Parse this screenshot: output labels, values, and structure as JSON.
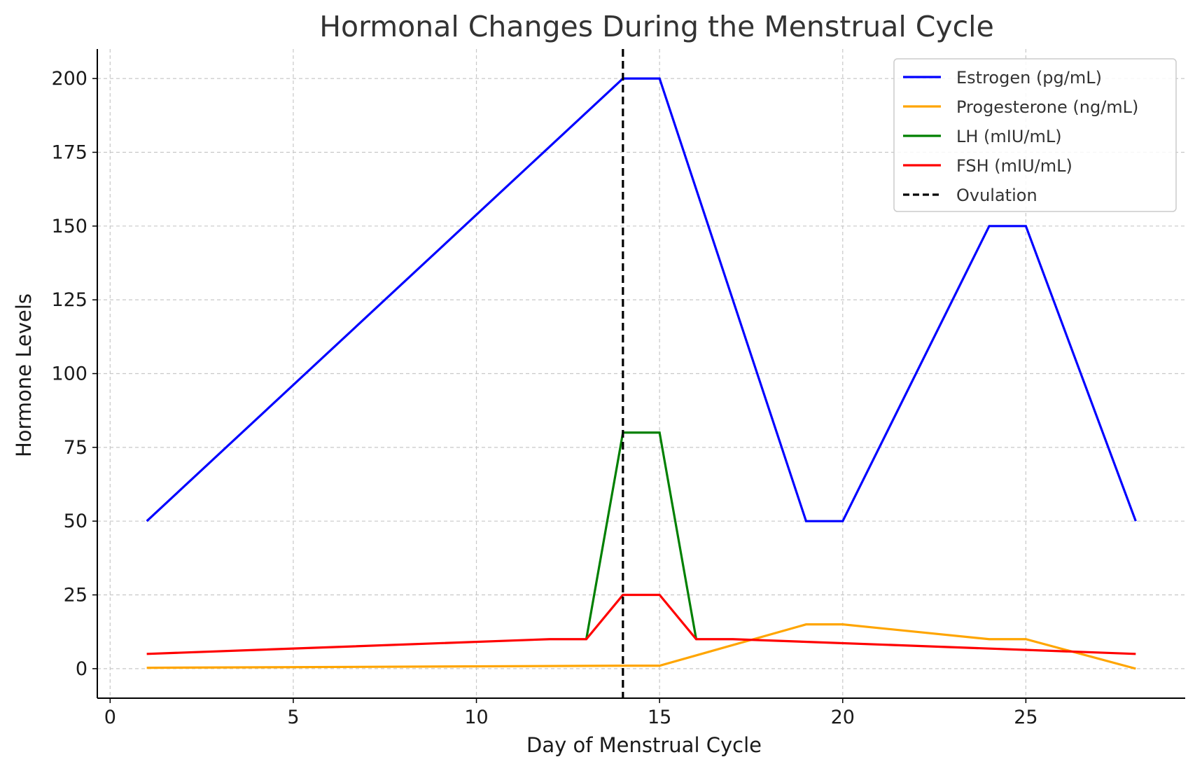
{
  "chart_data": {
    "type": "line",
    "title": "Hormonal Changes During the Menstrual Cycle",
    "xlabel": "Day of Menstrual Cycle",
    "ylabel": "Hormone Levels",
    "xlim": [
      -0.35,
      29.35
    ],
    "ylim": [
      -10,
      210
    ],
    "xticks": [
      0,
      5,
      10,
      15,
      20,
      25
    ],
    "yticks": [
      0,
      25,
      50,
      75,
      100,
      125,
      150,
      175,
      200
    ],
    "grid": true,
    "legend_position": "top-right",
    "series": [
      {
        "name": "Estrogen (pg/mL)",
        "color": "#0000ff",
        "points": [
          [
            1,
            50
          ],
          [
            14,
            200
          ],
          [
            15,
            200
          ],
          [
            19,
            50
          ],
          [
            20,
            50
          ],
          [
            24,
            150
          ],
          [
            25,
            150
          ],
          [
            28,
            50
          ]
        ]
      },
      {
        "name": "Progesterone (ng/mL)",
        "color": "#ffa500",
        "points": [
          [
            1,
            0.3
          ],
          [
            14,
            1
          ],
          [
            15,
            1
          ],
          [
            19,
            15
          ],
          [
            20,
            15
          ],
          [
            24,
            10
          ],
          [
            25,
            10
          ],
          [
            28,
            0
          ]
        ]
      },
      {
        "name": "LH (mIU/mL)",
        "color": "#008000",
        "points": [
          [
            13,
            10
          ],
          [
            14,
            80
          ],
          [
            15,
            80
          ],
          [
            16,
            10
          ]
        ]
      },
      {
        "name": "FSH (mIU/mL)",
        "color": "#ff0000",
        "points": [
          [
            1,
            5
          ],
          [
            12,
            10
          ],
          [
            13,
            10
          ],
          [
            14,
            25
          ],
          [
            15,
            25
          ],
          [
            16,
            10
          ],
          [
            17,
            10
          ],
          [
            28,
            5
          ]
        ]
      }
    ],
    "vlines": [
      {
        "name": "Ovulation",
        "x": 14,
        "color": "#000000",
        "style": "dashed"
      }
    ]
  }
}
